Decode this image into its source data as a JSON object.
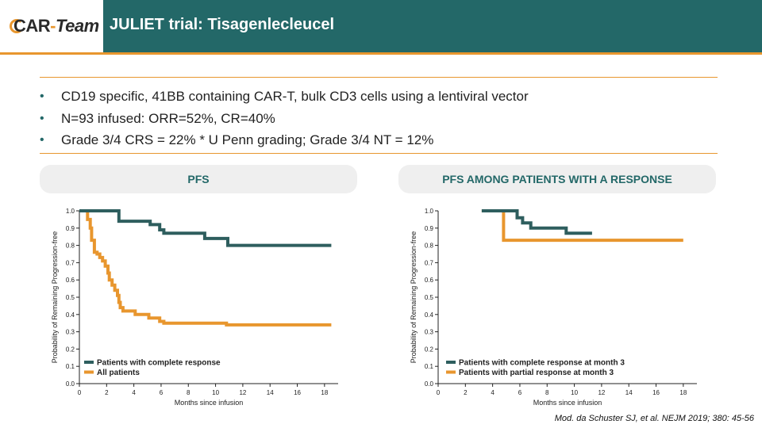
{
  "header": {
    "logo": {
      "car": "CAR",
      "dash": "-",
      "team": "Team"
    },
    "title": "JULIET trial: Tisagenlecleucel"
  },
  "bullets": [
    "CD19 specific, 41BB containing CAR-T, bulk CD3 cells using a lentiviral vector",
    "N=93 infused: ORR=52%, CR=40%",
    "Grade 3/4 CRS = 22% * U Penn grading; Grade 3/4 NT = 12%"
  ],
  "panels": {
    "left": "PFS",
    "right": "PFS AMONG PATIENTS WITH A RESPONSE"
  },
  "colors": {
    "header_teal": "#236868",
    "accent_orange": "#e8962e",
    "series_teal": "#2e5e5e",
    "series_orange": "#e8962e"
  },
  "citation": "Mod. da Schuster SJ, et al. NEJM 2019; 380: 45-56",
  "chart_data": [
    {
      "type": "line",
      "title": "PFS",
      "xlabel": "Months since infusion",
      "ylabel": "Probability of Remaining Progression-free",
      "xlim": [
        0,
        19
      ],
      "ylim": [
        0,
        1.0
      ],
      "xticks": [
        "0",
        "2",
        "4",
        "6",
        "8",
        "10",
        "12",
        "14",
        "16",
        "18"
      ],
      "yticks": [
        "0.0",
        "0.1",
        "0.2",
        "0.3",
        "0.4",
        "0.5",
        "0.6",
        "0.7",
        "0.8",
        "0.9",
        "1.0"
      ],
      "legend": "bottom-left",
      "series": [
        {
          "name": "Patients with complete response",
          "color": "#2e5e5e",
          "step": true,
          "x": [
            0,
            2.9,
            2.9,
            5.2,
            5.2,
            5.9,
            5.9,
            6.2,
            6.2,
            9.2,
            9.2,
            10.9,
            10.9,
            18.5
          ],
          "y": [
            1.0,
            1.0,
            0.94,
            0.94,
            0.92,
            0.92,
            0.89,
            0.89,
            0.87,
            0.87,
            0.84,
            0.84,
            0.8,
            0.8
          ]
        },
        {
          "name": "All patients",
          "color": "#e8962e",
          "step": true,
          "x": [
            0,
            0.6,
            0.6,
            0.8,
            0.8,
            0.9,
            0.9,
            1.1,
            1.1,
            1.3,
            1.3,
            1.5,
            1.5,
            1.7,
            1.7,
            1.9,
            1.9,
            2.1,
            2.1,
            2.2,
            2.2,
            2.4,
            2.4,
            2.6,
            2.6,
            2.8,
            2.8,
            2.9,
            2.9,
            3.0,
            3.0,
            3.2,
            3.2,
            4.1,
            4.1,
            5.1,
            5.1,
            5.9,
            5.9,
            6.2,
            6.2,
            10.8,
            10.8,
            18.5
          ],
          "y": [
            1.0,
            1.0,
            0.95,
            0.95,
            0.9,
            0.9,
            0.83,
            0.83,
            0.76,
            0.76,
            0.75,
            0.75,
            0.73,
            0.73,
            0.71,
            0.71,
            0.68,
            0.68,
            0.64,
            0.64,
            0.6,
            0.6,
            0.57,
            0.57,
            0.54,
            0.54,
            0.51,
            0.51,
            0.47,
            0.47,
            0.44,
            0.44,
            0.42,
            0.42,
            0.4,
            0.4,
            0.38,
            0.38,
            0.36,
            0.36,
            0.35,
            0.35,
            0.34,
            0.34
          ]
        }
      ]
    },
    {
      "type": "line",
      "title": "PFS AMONG PATIENTS WITH A RESPONSE",
      "xlabel": "Months since infusion",
      "ylabel": "Probability of Remaining Progression-free",
      "xlim": [
        0,
        19
      ],
      "ylim": [
        0,
        1.0
      ],
      "xticks": [
        "0",
        "2",
        "4",
        "6",
        "8",
        "10",
        "12",
        "14",
        "16",
        "18"
      ],
      "yticks": [
        "0.0",
        "0.1",
        "0.2",
        "0.3",
        "0.4",
        "0.5",
        "0.6",
        "0.7",
        "0.8",
        "0.9",
        "1.0"
      ],
      "legend": "bottom-left",
      "series": [
        {
          "name": "Patients with complete response at month 3",
          "color": "#2e5e5e",
          "step": true,
          "x": [
            3.2,
            5.8,
            5.8,
            6.2,
            6.2,
            6.8,
            6.8,
            9.4,
            9.4,
            11.3
          ],
          "y": [
            1.0,
            1.0,
            0.96,
            0.96,
            0.93,
            0.93,
            0.9,
            0.9,
            0.87,
            0.87
          ]
        },
        {
          "name": "Patients with partial response at month 3",
          "color": "#e8962e",
          "step": true,
          "x": [
            3.2,
            4.8,
            4.8,
            18.0
          ],
          "y": [
            1.0,
            1.0,
            0.83,
            0.83
          ]
        }
      ]
    }
  ]
}
